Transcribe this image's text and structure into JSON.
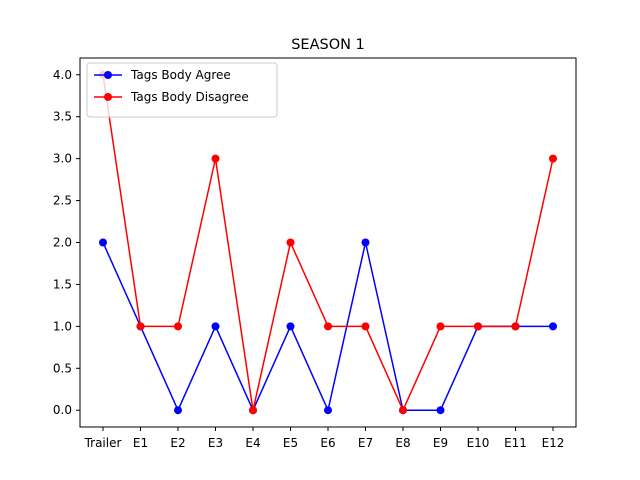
{
  "chart_data": {
    "type": "line",
    "title": "SEASON 1",
    "xlabel": "",
    "ylabel": "",
    "categories": [
      "Trailer",
      "E1",
      "E2",
      "E3",
      "E4",
      "E5",
      "E6",
      "E7",
      "E8",
      "E9",
      "E10",
      "E11",
      "E12"
    ],
    "ylim": [
      -0.2,
      4.2
    ],
    "yticks": [
      "0.0",
      "0.5",
      "1.0",
      "1.5",
      "2.0",
      "2.5",
      "3.0",
      "3.5",
      "4.0"
    ],
    "grid": false,
    "legend_position": "top-left",
    "series": [
      {
        "name": "Tags Body Agree",
        "color": "#0000ff",
        "marker": "circle",
        "values": [
          2,
          1,
          0,
          1,
          0,
          1,
          0,
          2,
          0,
          0,
          1,
          1,
          1
        ]
      },
      {
        "name": "Tags Body Disagree",
        "color": "#ff0000",
        "marker": "circle",
        "values": [
          4,
          1,
          1,
          3,
          0,
          2,
          1,
          1,
          0,
          1,
          1,
          1,
          3
        ]
      }
    ]
  }
}
